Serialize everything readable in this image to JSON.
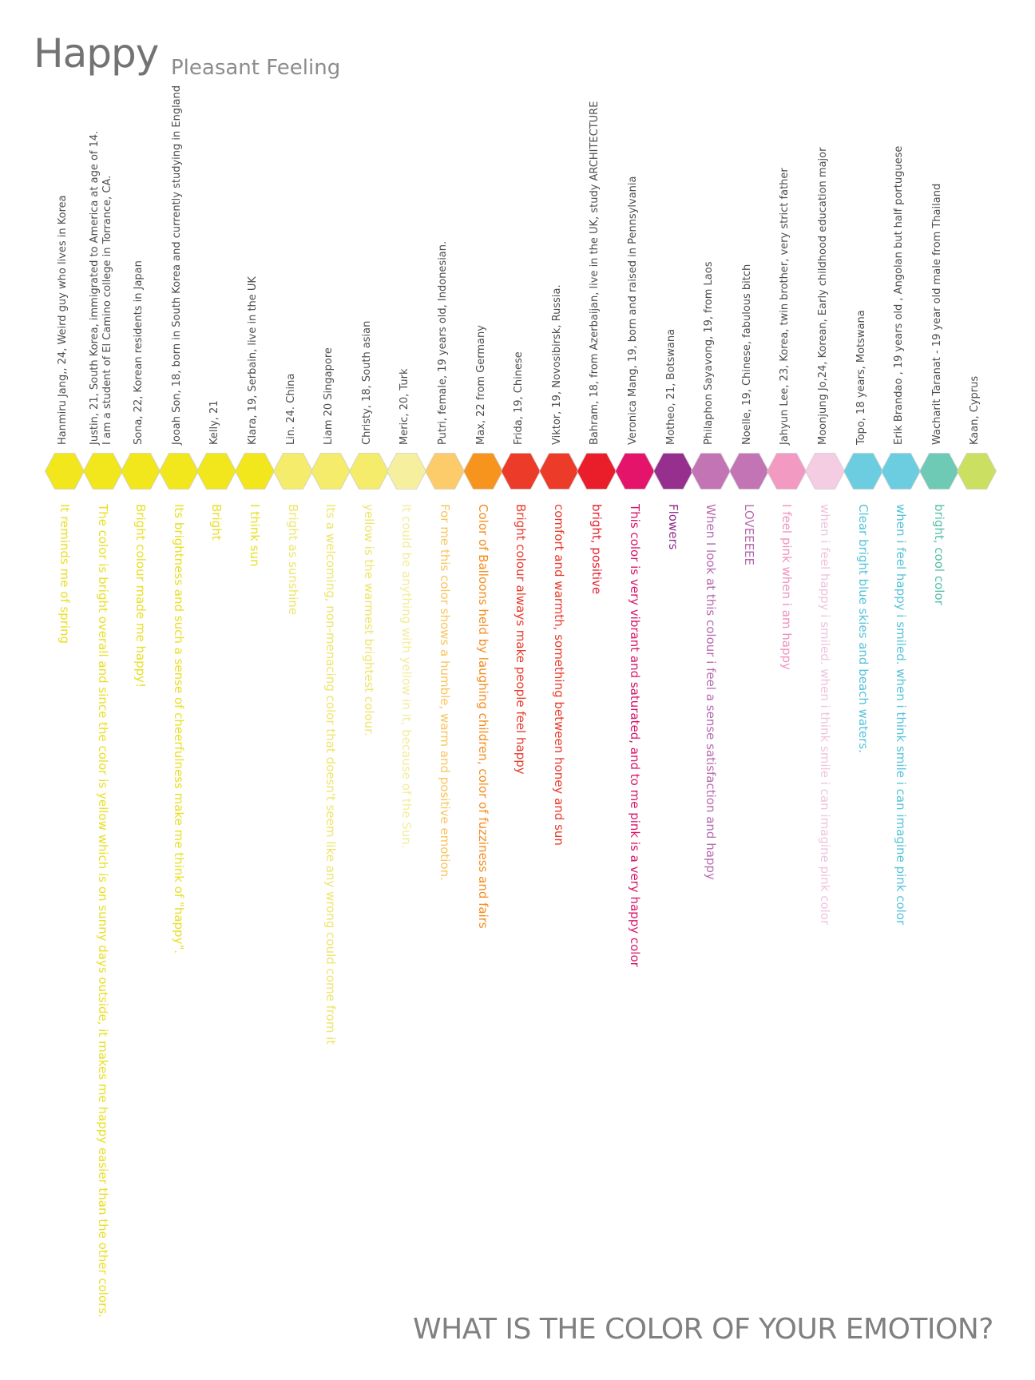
{
  "title": "Happy",
  "subtitle": "Pleasant Feeling",
  "footer": "WHAT IS THE COLOR OF YOUR EMOTION?",
  "entries": [
    {
      "person": "Hanmiru Jang,, 24, Weird guy who lives in Korea",
      "person2": "",
      "comment": "It reminds me of spring",
      "color": "#f2e61c",
      "text_color": "#e8df22"
    },
    {
      "person": "Justin, 21, South Korea, immigrated to America at age of 14.",
      "person2": "I am a student of El Camino college in Torrance, CA.",
      "comment": "The color is bright overall and since the color is yellow which is on sunny days outside, it makes me happy easier than the other colors.",
      "color": "#f2e61c",
      "text_color": "#e8df22"
    },
    {
      "person": "Sona, 22, Korean residents in Japan",
      "person2": "",
      "comment": "Bright colour made me happy!",
      "color": "#f2e61c",
      "text_color": "#e8df22"
    },
    {
      "person": "Jooah Son, 18, born in South Korea and currently studying in England",
      "person2": "",
      "comment": "Its brightness and such a sense of cheerfulness make me think of \"happy\".",
      "color": "#f2e61c",
      "text_color": "#e8df22"
    },
    {
      "person": "Kelly, 21",
      "person2": "",
      "comment": "Bright",
      "color": "#f2e61c",
      "text_color": "#e8df22"
    },
    {
      "person": "Klara, 19, Serbain, live in the UK",
      "person2": "",
      "comment": "I think sun",
      "color": "#f2e61c",
      "text_color": "#e8df22"
    },
    {
      "person": "Lin. 24. China",
      "person2": "",
      "comment": "Bright as sunshine",
      "color": "#f4ec6a",
      "text_color": "#eee56a"
    },
    {
      "person": "Liam 20 Singapore",
      "person2": "",
      "comment": "Its a welcoming, non-menacing color that doesn't seem like any wrong could come from it",
      "color": "#f4ec6a",
      "text_color": "#eee56a"
    },
    {
      "person": "Christy, 18, South asian",
      "person2": "",
      "comment": "yellow is the warmest brightest colour.",
      "color": "#f4ec6a",
      "text_color": "#eee56a"
    },
    {
      "person": "Meric, 20, Turk",
      "person2": "",
      "comment": "It could be anything with yellow in it, because of the Sun.",
      "color": "#f6f09e",
      "text_color": "#f3ed9a"
    },
    {
      "person": "Putri, female, 19 years old, Indonesian.",
      "person2": "",
      "comment": "For me this color shows a humble, warm and positive emotion.",
      "color": "#fccb6a",
      "text_color": "#f9c55f"
    },
    {
      "person": "Max, 22 from Germany",
      "person2": "",
      "comment": "Color of Balloons held by laughing children, color of fuzziness and fairs",
      "color": "#f7941d",
      "text_color": "#f28c1c"
    },
    {
      "person": "Frida, 19, Chinese",
      "person2": "",
      "comment": "Bright colour always make people feel happy",
      "color": "#ec3b28",
      "text_color": "#e8392a"
    },
    {
      "person": "Viktor, 19, Novosibirsk, Russia.",
      "person2": "",
      "comment": "comfort and warmth, something between honey and sun",
      "color": "#ec3b28",
      "text_color": "#e8392a"
    },
    {
      "person": "Bahram, 18, from Azerbaijan, live in the UK, study ARCHITECTURE",
      "person2": "",
      "comment": "bright, positive",
      "color": "#ea1d2a",
      "text_color": "#e41d2d"
    },
    {
      "person": "Veronica Mang, 19, born and raised in Pennsylvania",
      "person2": "",
      "comment": "This color is very vibrant and saturated, and to me pink is a very happy color",
      "color": "#e5146b",
      "text_color": "#d9156a"
    },
    {
      "person": "Motheo, 21, Botswana",
      "person2": "",
      "comment": "Flowers",
      "color": "#962f8e",
      "text_color": "#8f2f8c"
    },
    {
      "person": "Philaphon Sayavong, 19, from Laos",
      "person2": "",
      "comment": "When I look at this colour i feel a sense satisfaction and happy",
      "color": "#c274b4",
      "text_color": "#b86bb0"
    },
    {
      "person": "Noelle, 19, Chinese, fabulous bitch",
      "person2": "",
      "comment": "LOVEEEEE",
      "color": "#c274b4",
      "text_color": "#b86bb0"
    },
    {
      "person": "Jahyun Lee, 23, Korea, twin brother, very strict father",
      "person2": "",
      "comment": "I feel pink when i am happy",
      "color": "#f29ac2",
      "text_color": "#ef93bf"
    },
    {
      "person": "Moonjung Jo,24, Korean, Early childhood education major",
      "person2": "",
      "comment": "when i feel happy i smiled. when i think smile i can imagine pink color",
      "color": "#f4cde2",
      "text_color": "#f0c4dc"
    },
    {
      "person": "Topo, 18 years, Motswana",
      "person2": "",
      "comment": "Clear bright blue skies and beach waters.",
      "color": "#6dcde0",
      "text_color": "#55c3d9"
    },
    {
      "person": "Erik Brandao , 19 years old , Angolan but half portuguese",
      "person2": "",
      "comment": "when i feel happy i smiled. when i think smile i can imagine pink color",
      "color": "#6dcde0",
      "text_color": "#55c3d9"
    },
    {
      "person": "Wacharit Taranat - 19 year old male from Thailand",
      "person2": "",
      "comment": "bright, cool color",
      "color": "#6ec9b5",
      "text_color": "#52bfa5"
    },
    {
      "person": "Kaan, Cyprus",
      "person2": "",
      "comment": "",
      "color": "#cbe061",
      "text_color": "#bfd550"
    }
  ]
}
